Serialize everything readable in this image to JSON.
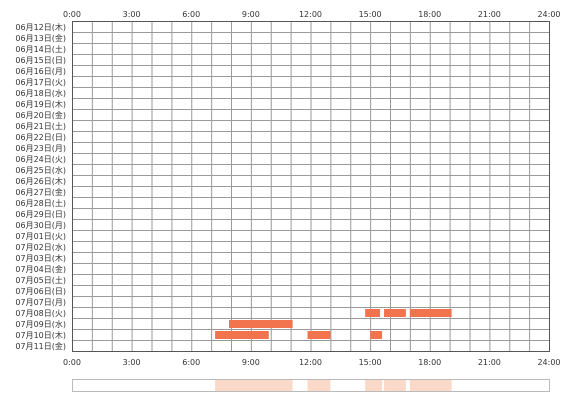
{
  "chart_data": {
    "type": "heatmap",
    "x_ticks": [
      "0:00",
      "3:00",
      "6:00",
      "9:00",
      "12:00",
      "15:00",
      "18:00",
      "21:00",
      "24:00"
    ],
    "xlim_hours": [
      0,
      24
    ],
    "grid": true,
    "rows": [
      "06月12日(木)",
      "06月13日(金)",
      "06月14日(土)",
      "06月15日(日)",
      "06月16日(月)",
      "06月17日(火)",
      "06月18日(水)",
      "06月19日(木)",
      "06月20日(金)",
      "06月21日(土)",
      "06月22日(日)",
      "06月23日(月)",
      "06月24日(火)",
      "06月25日(水)",
      "06月26日(木)",
      "06月27日(金)",
      "06月28日(土)",
      "06月29日(日)",
      "06月30日(月)",
      "07月01日(火)",
      "07月02日(水)",
      "07月03日(木)",
      "07月04日(金)",
      "07月05日(土)",
      "07月06日(日)",
      "07月07日(月)",
      "07月08日(火)",
      "07月09日(水)",
      "07月10日(木)",
      "07月11日(金)"
    ],
    "activity": [
      {
        "row": "07月08日(火)",
        "segments": [
          [
            14.75,
            15.5
          ],
          [
            15.7,
            16.8
          ],
          [
            17.0,
            19.1
          ]
        ]
      },
      {
        "row": "07月09日(水)",
        "segments": [
          [
            7.9,
            11.1
          ]
        ]
      },
      {
        "row": "07月10日(木)",
        "segments": [
          [
            7.2,
            9.9
          ],
          [
            11.85,
            13.0
          ],
          [
            15.0,
            15.6
          ]
        ]
      }
    ],
    "summary_segments": [
      [
        7.2,
        11.1
      ],
      [
        11.85,
        13.0
      ],
      [
        14.75,
        15.6
      ],
      [
        15.7,
        16.8
      ],
      [
        17.0,
        19.1
      ]
    ],
    "colors": {
      "activity": "#f2744f",
      "summary": "#fbd9c8",
      "grid": "#9a9a9a",
      "border": "#555555"
    }
  }
}
